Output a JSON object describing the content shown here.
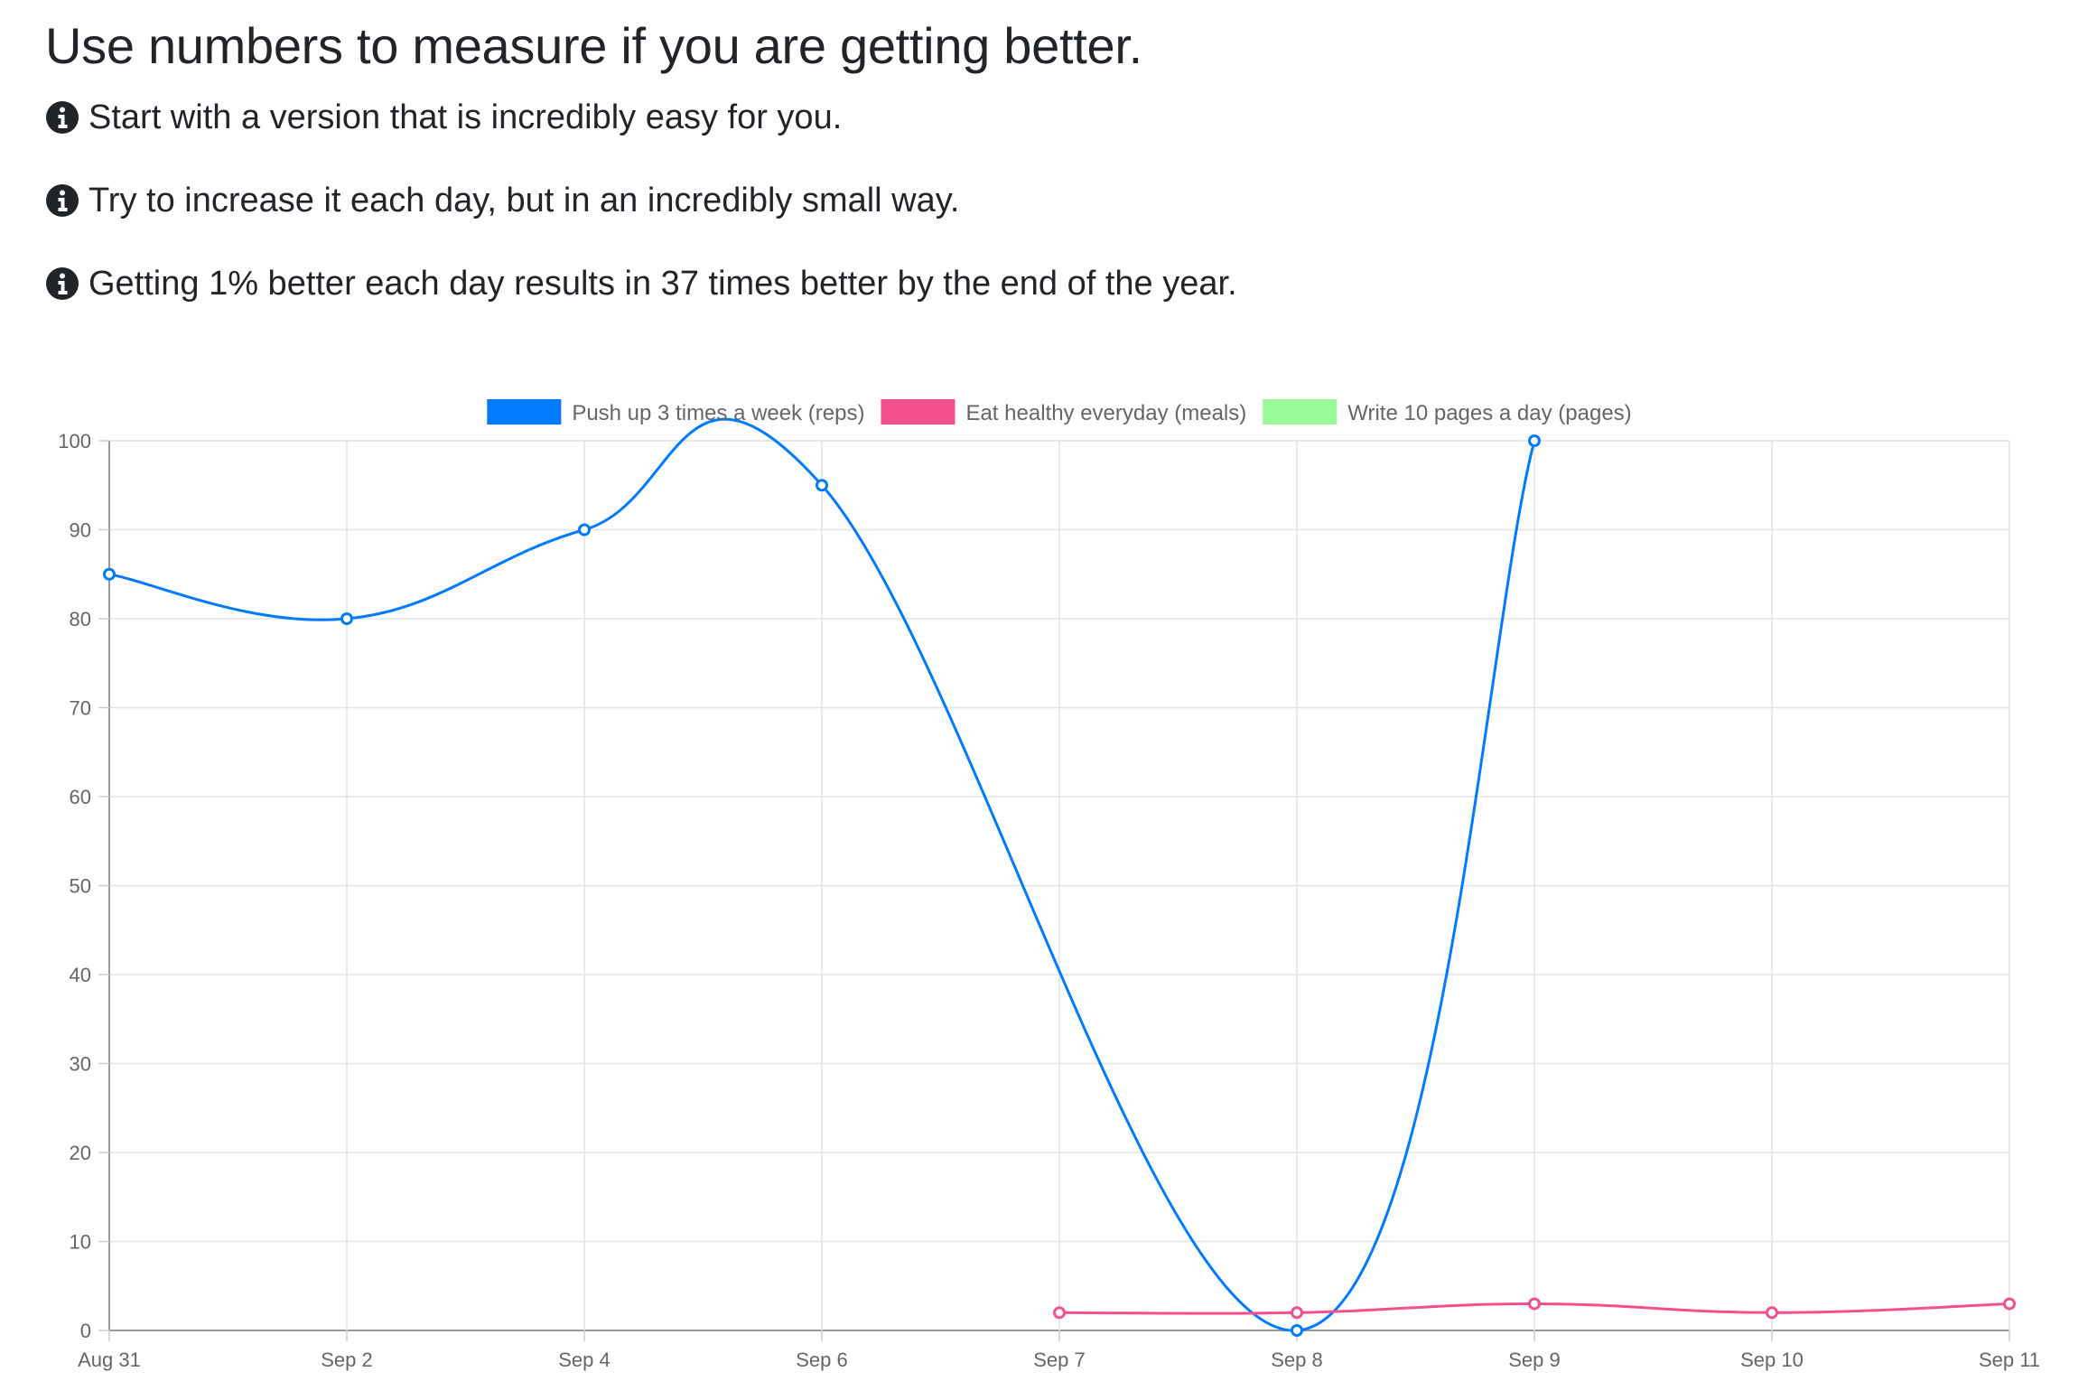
{
  "header": {
    "title": "Use numbers to measure if you are getting better."
  },
  "tips": [
    {
      "icon": "info-circle-icon",
      "text": "Start with a version that is incredibly easy for you."
    },
    {
      "icon": "info-circle-icon",
      "text": "Try to increase it each day, but in an incredibly small way."
    },
    {
      "icon": "info-circle-icon",
      "text": "Getting 1% better each day results in 37 times better by the end of the year."
    }
  ],
  "chart_data": {
    "type": "line",
    "title": "",
    "xlabel": "",
    "ylabel": "",
    "ylim": [
      0,
      100
    ],
    "y_ticks": [
      0,
      10,
      20,
      30,
      40,
      50,
      60,
      70,
      80,
      90,
      100
    ],
    "x_categories": [
      "Aug 31",
      "Sep 2",
      "Sep 4",
      "Sep 6",
      "Sep 7",
      "Sep 8",
      "Sep 9",
      "Sep 10",
      "Sep 11"
    ],
    "grid": true,
    "legend_position": "top-center",
    "series": [
      {
        "name": "Push up 3 times a week (reps)",
        "color": "#007bff",
        "values": [
          85,
          80,
          90,
          95,
          null,
          0,
          100,
          null,
          null
        ]
      },
      {
        "name": "Eat healthy everyday (meals)",
        "color": "#f64f8d",
        "values": [
          null,
          null,
          null,
          null,
          2,
          2,
          3,
          2,
          3
        ]
      },
      {
        "name": "Write 10 pages a day (pages)",
        "color": "#98fb98",
        "values": [
          null,
          null,
          null,
          null,
          null,
          null,
          null,
          null,
          null
        ]
      }
    ]
  }
}
